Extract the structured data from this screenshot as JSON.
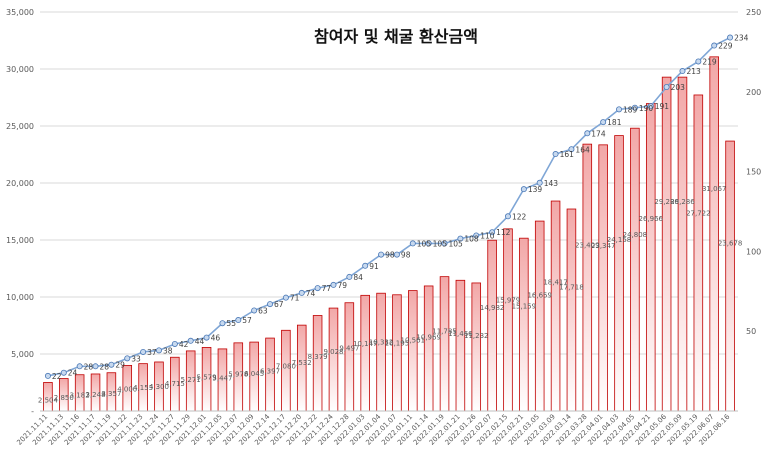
{
  "chart_data": {
    "type": "bar",
    "title": "참여자 및 채굴 환산금액",
    "categories": [
      "2021.11.11",
      "2021.11.13",
      "2021.11.16",
      "2021.11.17",
      "2021.11.19",
      "2021.11.22",
      "2021.11.23",
      "2021.11.24",
      "2021.11.27",
      "2021.11.29",
      "2021.12.01",
      "2021.12.05",
      "2021.12.07",
      "2021.12.09",
      "2021.12.14",
      "2021.12.17",
      "2021.12.20",
      "2021.12.22",
      "2021.12.24",
      "2021.12.28",
      "2022.01.03",
      "2022.01.04",
      "2022.01.07",
      "2022.01.11",
      "2022.01.14",
      "2022.01.19",
      "2022.01.21",
      "2022.01.26",
      "2022.02.07",
      "2022.02.15",
      "2022.02.21",
      "2022.03.05",
      "2022.03.09",
      "2022.03.14",
      "2022.03.28",
      "2022.04.01",
      "2022.04.03",
      "2022.04.05",
      "2022.04.21",
      "2022.05.06",
      "2022.05.09",
      "2022.05.19",
      "2022.06.07",
      "2022.06.16"
    ],
    "series": [
      {
        "axis": "left",
        "type": "bar",
        "values": [
          2504,
          2850,
          3182,
          3248,
          3357,
          4000,
          4153,
          4300,
          4715,
          5271,
          5579,
          5447,
          5978,
          6045,
          6397,
          7080,
          7532,
          8379,
          9028,
          9497,
          10147,
          10332,
          10195,
          10561,
          10969,
          11785,
          11466,
          11232,
          14982,
          15979,
          15159,
          16659,
          18417,
          17718,
          23409,
          23347,
          24158,
          24808,
          26966,
          29286,
          29286,
          27722,
          31067,
          23678
        ],
        "labels": [
          "2,504",
          "2,850",
          "3,182",
          "3,248",
          "3,357",
          "4,000",
          "4,153",
          "4,300",
          "4,715",
          "5,271",
          "5,579",
          "5,447",
          "5,978",
          "6,045",
          "6,397",
          "7,080",
          "7,532",
          "8,379",
          "9,028",
          "9,497",
          "10,147",
          "10,332",
          "10,195",
          "10,561",
          "10,969",
          "11,785",
          "11,466",
          "11,232",
          "14,982",
          "15,979",
          "15,159",
          "16,659",
          "18,417",
          "17,718",
          "23,409",
          "23,347",
          "24,158",
          "24,808",
          "26,966",
          "29,286",
          "29,286",
          "27,722",
          "31,067",
          "23,678"
        ]
      },
      {
        "axis": "right",
        "type": "line",
        "values": [
          22,
          24,
          28,
          28,
          29,
          33,
          37,
          38,
          42,
          44,
          46,
          55,
          57,
          63,
          67,
          71,
          74,
          77,
          79,
          84,
          91,
          98,
          98,
          105,
          105,
          105,
          108,
          110,
          112,
          122,
          139,
          143,
          161,
          164,
          174,
          181,
          189,
          190,
          191,
          203,
          213,
          219,
          229,
          234
        ]
      }
    ],
    "y_left": {
      "ticks": [
        "-",
        "5,000",
        "10,000",
        "15,000",
        "20,000",
        "25,000",
        "30,000",
        "35,000"
      ],
      "range": [
        0,
        35000
      ]
    },
    "y_right": {
      "ticks": [
        "50",
        "100",
        "150",
        "200",
        "250"
      ],
      "range": [
        0,
        250
      ]
    },
    "grid": true,
    "legend": "none",
    "colors": {
      "bar_fill_top": "#f2a7a7",
      "bar_fill_bottom": "#ffffff",
      "bar_stroke": "#c00000",
      "line": "#7fa6d6",
      "marker_fill": "#c7d9ef",
      "marker_stroke": "#4a78b6",
      "grid": "#d9d9d9"
    }
  }
}
